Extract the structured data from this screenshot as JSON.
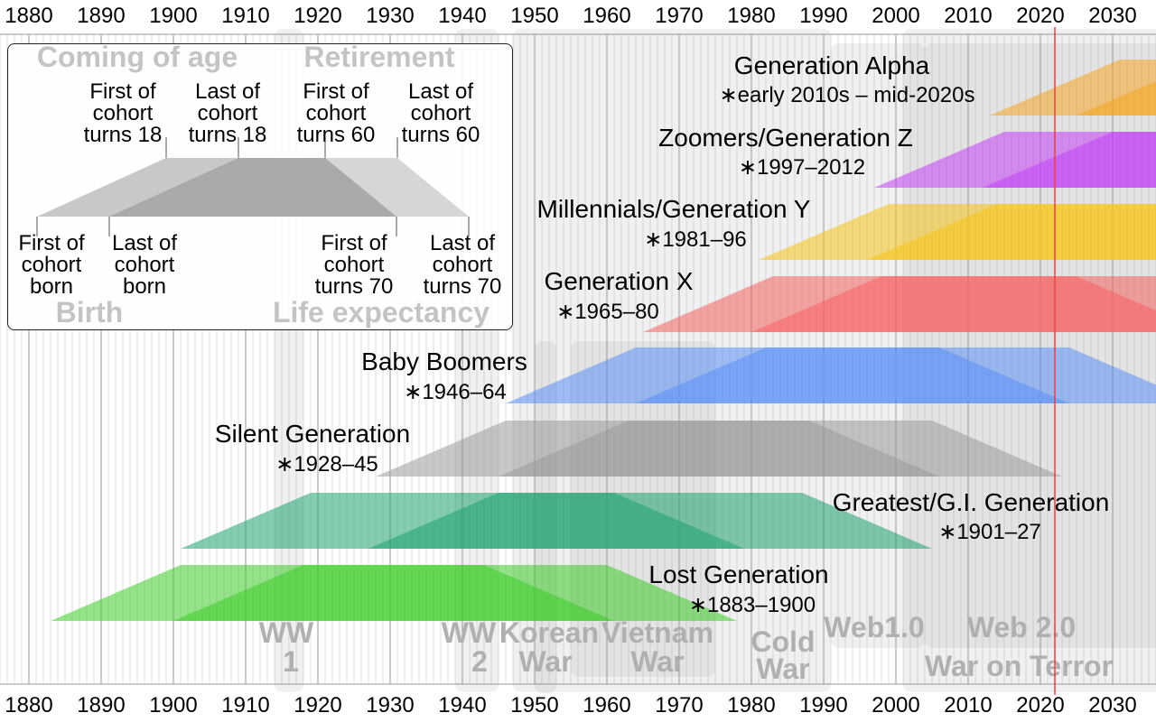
{
  "axis_years": [
    "1880",
    "1890",
    "1900",
    "1910",
    "1920",
    "1930",
    "1940",
    "1950",
    "1960",
    "1970",
    "1980",
    "1990",
    "2000",
    "2010",
    "2020",
    "2030"
  ],
  "current_year": 2022,
  "events": [
    {
      "id": "ww1",
      "label_lines": [
        "WW",
        "1"
      ],
      "start": 1914,
      "end": 1918
    },
    {
      "id": "ww2",
      "label_lines": [
        "WW",
        "2"
      ],
      "start": 1939,
      "end": 1945
    },
    {
      "id": "korean-war",
      "label_lines": [
        "Korean",
        "War"
      ],
      "start": 1950,
      "end": 1953
    },
    {
      "id": "vietnam-war",
      "label_lines": [
        "Vietnam",
        "War"
      ],
      "start": 1955,
      "end": 1975
    },
    {
      "id": "cold-war",
      "label_lines": [
        "Cold",
        "War"
      ],
      "start": 1947,
      "end": 1991
    },
    {
      "id": "web1",
      "label_lines": [
        "Web1.0"
      ],
      "start": 1991,
      "end": 2004
    },
    {
      "id": "web2",
      "label_lines": [
        "Web 2.0"
      ],
      "start": 2004,
      "end": 2040
    },
    {
      "id": "war-on-terror",
      "label_lines": [
        "War on Terror"
      ],
      "start": 2001,
      "end": 2040
    }
  ],
  "generations": [
    {
      "name": "Generation Alpha",
      "years": "∗early 2010s – mid-2020s",
      "born_first": 2013,
      "born_last": 2025,
      "color": "#f5a623"
    },
    {
      "name": "Zoomers/Generation Z",
      "years": "∗1997–2012",
      "born_first": 1997,
      "born_last": 2012,
      "color": "#c23ff5"
    },
    {
      "name": "Millennials/Generation Y",
      "years": "∗1981–96",
      "born_first": 1981,
      "born_last": 1996,
      "color": "#f5c518"
    },
    {
      "name": "Generation X",
      "years": "∗1965–80",
      "born_first": 1965,
      "born_last": 1980,
      "color": "#f56262"
    },
    {
      "name": "Baby Boomers",
      "years": "∗1946–64",
      "born_first": 1946,
      "born_last": 1964,
      "color": "#5b8ff5"
    },
    {
      "name": "Silent Generation",
      "years": "∗1928–45",
      "born_first": 1928,
      "born_last": 1945,
      "color": "#9a9a9a"
    },
    {
      "name": "Greatest/G.I. Generation",
      "years": "∗1901–27",
      "born_first": 1901,
      "born_last": 1927,
      "color": "#1fa370"
    },
    {
      "name": "Lost Generation",
      "years": "∗1883–1900",
      "born_first": 1883,
      "born_last": 1900,
      "color": "#3ccc28"
    }
  ],
  "legend": {
    "title_left": "Coming of age",
    "title_right": "Retirement",
    "bottom_left": "Birth",
    "bottom_right": "Life expectancy",
    "top_labels": [
      [
        "First of",
        "cohort",
        "turns 18"
      ],
      [
        "Last of",
        "cohort",
        "turns 18"
      ],
      [
        "First of",
        "cohort",
        "turns 60"
      ],
      [
        "Last of",
        "cohort",
        "turns 60"
      ]
    ],
    "bottom_labels": [
      [
        "First of",
        "cohort",
        "born"
      ],
      [
        "Last of",
        "cohort",
        "born"
      ],
      [
        "First of",
        "cohort",
        "turns 70"
      ],
      [
        "Last of",
        "cohort",
        "turns 70"
      ]
    ]
  }
}
